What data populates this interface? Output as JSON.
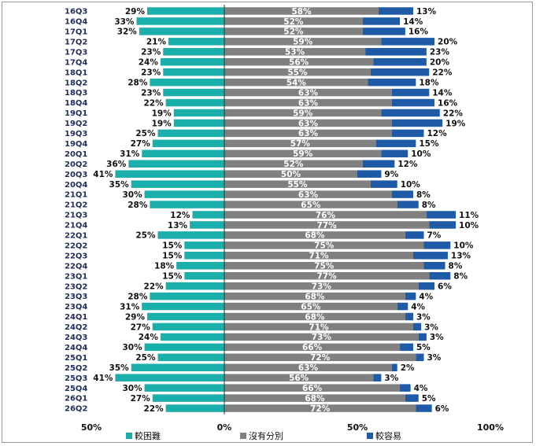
{
  "chart_data": {
    "type": "bar",
    "orientation": "horizontal",
    "stacked": true,
    "categories": [
      "16Q3",
      "16Q4",
      "17Q1",
      "17Q2",
      "17Q3",
      "17Q4",
      "18Q1",
      "18Q2",
      "18Q3",
      "18Q4",
      "19Q1",
      "19Q2",
      "19Q3",
      "19Q4",
      "20Q1",
      "20Q2",
      "20Q3",
      "20Q4",
      "21Q1",
      "21Q2",
      "21Q3",
      "21Q4",
      "22Q1",
      "22Q2",
      "22Q3",
      "22Q4",
      "23Q1",
      "23Q2",
      "23Q3",
      "23Q4",
      "24Q1",
      "24Q2",
      "24Q3",
      "24Q4",
      "25Q1",
      "25Q2",
      "25Q3",
      "25Q4",
      "26Q1",
      "26Q2"
    ],
    "series": [
      {
        "name": "較困難",
        "color": "#1aafaa",
        "values": [
          29,
          33,
          32,
          21,
          23,
          24,
          23,
          28,
          23,
          22,
          19,
          19,
          25,
          27,
          31,
          36,
          41,
          35,
          30,
          28,
          12,
          13,
          25,
          15,
          15,
          18,
          15,
          22,
          28,
          31,
          29,
          27,
          24,
          30,
          25,
          35,
          41,
          30,
          27,
          22
        ]
      },
      {
        "name": "沒有分別",
        "color": "#808080",
        "values": [
          58,
          52,
          52,
          59,
          53,
          56,
          55,
          54,
          63,
          63,
          59,
          63,
          63,
          57,
          59,
          52,
          50,
          55,
          63,
          65,
          76,
          77,
          68,
          75,
          71,
          75,
          77,
          73,
          68,
          65,
          68,
          71,
          73,
          66,
          72,
          63,
          56,
          66,
          68,
          72
        ]
      },
      {
        "name": "較容易",
        "color": "#1f5aa6",
        "values": [
          13,
          14,
          16,
          20,
          23,
          20,
          22,
          18,
          14,
          16,
          22,
          19,
          12,
          15,
          10,
          12,
          9,
          10,
          8,
          8,
          11,
          10,
          7,
          10,
          13,
          8,
          8,
          6,
          4,
          4,
          3,
          3,
          3,
          5,
          3,
          2,
          3,
          4,
          5,
          6
        ]
      }
    ],
    "x_ticks": [
      "50%",
      "0%",
      "50%",
      "100%"
    ],
    "x_range": [
      -50,
      100
    ],
    "value_suffix": "%",
    "legend_position": "bottom"
  }
}
